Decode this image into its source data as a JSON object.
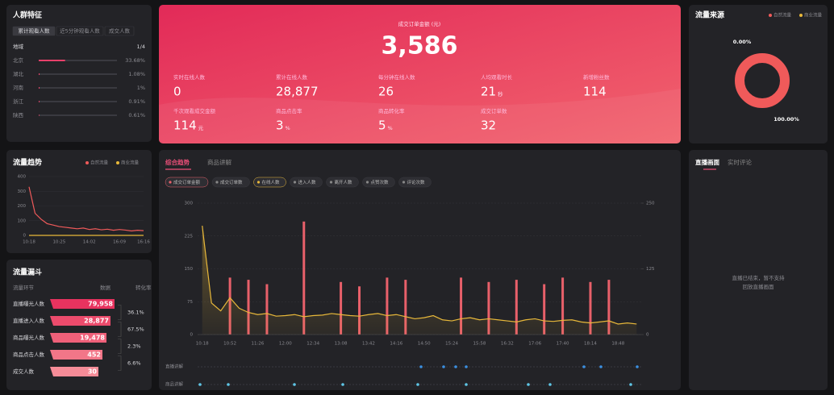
{
  "audience": {
    "title": "人群特征",
    "tabs": [
      "累计观看人数",
      "近5分钟观看人数",
      "成交人数"
    ],
    "dimension": "地域",
    "page": "1/4",
    "regions": {
      "names": [
        "北京",
        "湖北",
        "河南",
        "浙江",
        "陕西"
      ],
      "values": [
        33.68,
        1.08,
        1,
        0.91,
        0.61
      ],
      "value_labels": [
        "33.68%",
        "1.08%",
        "1%",
        "0.91%",
        "0.61%"
      ]
    }
  },
  "overview": {
    "headline": {
      "label": "成交订单金额 (元)",
      "value": "3,586"
    },
    "metrics": [
      {
        "label": "实时在线人数",
        "value": "0"
      },
      {
        "label": "累计在线人数",
        "value": "28,877"
      },
      {
        "label": "每分钟在线人数",
        "value": "26"
      },
      {
        "label": "人均观看时长",
        "value": "21",
        "unit": "秒"
      },
      {
        "label": "新增粉丝数",
        "value": "114"
      },
      {
        "label": "千次观看成交金额",
        "value": "114",
        "unit": "元"
      },
      {
        "label": "商品点击率",
        "value": "3",
        "unit": "%"
      },
      {
        "label": "商品转化率",
        "value": "5",
        "unit": "%"
      },
      {
        "label": "成交订单数",
        "value": "32"
      }
    ]
  },
  "chart_data": [
    {
      "type": "pie",
      "title": "流量来源",
      "categories": [
        "自然流量",
        "商业流量"
      ],
      "colors": [
        "#f05a5a",
        "#e8b83a"
      ],
      "values": [
        100,
        0
      ],
      "value_labels": [
        "100.00%",
        "0.00%"
      ]
    },
    {
      "type": "line",
      "title": "流量趋势",
      "categories": [
        "10:18",
        null,
        null,
        null,
        null,
        "10:25",
        null,
        null,
        null,
        null,
        "14:02",
        null,
        null,
        null,
        null,
        "16:09",
        null,
        null,
        null,
        "16:16"
      ],
      "series": [
        {
          "name": "自然流量",
          "color": "#f05a5a",
          "values": [
            330,
            150,
            110,
            80,
            70,
            60,
            55,
            50,
            45,
            50,
            40,
            45,
            38,
            42,
            35,
            40,
            36,
            30,
            35,
            32
          ]
        },
        {
          "name": "商业流量",
          "color": "#e8b83a",
          "values": [
            0,
            0,
            0,
            0,
            0,
            0,
            0,
            0,
            0,
            0,
            0,
            0,
            0,
            0,
            0,
            0,
            0,
            0,
            0,
            0
          ]
        }
      ],
      "ylim": [
        0,
        400
      ],
      "yticks": [
        0,
        100,
        200,
        300,
        400
      ]
    },
    {
      "type": "combo",
      "categories": [
        "10:18",
        null,
        null,
        "10:52",
        null,
        null,
        "11:26",
        null,
        null,
        "12:00",
        null,
        null,
        "12:34",
        null,
        null,
        "13:08",
        null,
        null,
        "13:42",
        null,
        null,
        "14:16",
        null,
        null,
        "14:50",
        null,
        null,
        "15:24",
        null,
        null,
        "15:58",
        null,
        null,
        "16:32",
        null,
        null,
        "17:06",
        null,
        null,
        "17:40",
        null,
        null,
        "18:14",
        null,
        null,
        "18:48",
        null,
        null
      ],
      "series": [
        {
          "name": "成交订单金额",
          "type": "bar",
          "color": "#e8606a",
          "values": [
            0,
            0,
            0,
            130,
            0,
            125,
            0,
            115,
            0,
            0,
            0,
            258,
            0,
            0,
            0,
            120,
            0,
            110,
            0,
            0,
            130,
            0,
            125,
            0,
            0,
            0,
            0,
            0,
            130,
            0,
            0,
            120,
            0,
            0,
            125,
            0,
            0,
            115,
            0,
            130,
            0,
            0,
            120,
            0,
            125,
            0,
            0,
            0
          ]
        },
        {
          "name": "在线人数",
          "type": "line",
          "axis": "y2",
          "color": "#e8b83a",
          "values": [
            207,
            60,
            45,
            70,
            50,
            42,
            38,
            40,
            35,
            36,
            38,
            34,
            36,
            37,
            40,
            38,
            36,
            35,
            38,
            40,
            36,
            38,
            34,
            30,
            32,
            36,
            28,
            26,
            30,
            32,
            28,
            30,
            28,
            26,
            24,
            28,
            30,
            26,
            25,
            27,
            28,
            24,
            22,
            24,
            26,
            20,
            22,
            20
          ]
        }
      ],
      "ylim": [
        0,
        300
      ],
      "yticks": [
        0,
        75,
        150,
        225,
        300
      ],
      "y2lim": [
        0,
        250
      ],
      "y2ticks": [
        0,
        125,
        250
      ],
      "grid": true
    }
  ],
  "funnel": {
    "title": "流量漏斗",
    "columns": [
      "流量环节",
      "数据",
      "转化率"
    ],
    "stages": [
      "直播曝光人数",
      "直播进入人数",
      "商品曝光人数",
      "商品点击人数",
      "成交人数"
    ],
    "values": [
      79958,
      28877,
      19478,
      452,
      30
    ],
    "value_labels": [
      "79,958",
      "28,877",
      "19,478",
      "452",
      "30"
    ],
    "rates": [
      "36.1%",
      "67.5%",
      "2.3%",
      "6.6%"
    ]
  },
  "main_panel": {
    "tabs": [
      "综合趋势",
      "商品讲解"
    ],
    "filters": [
      "成交订单数",
      "进入人数",
      "离开人数",
      "点赞次数",
      "评论次数"
    ],
    "timeline": [
      "直播讲解",
      "商品讲解"
    ]
  },
  "live_panel": {
    "tabs": [
      "直播画面",
      "实时评论"
    ],
    "message": [
      "直播已结束，暂不支持",
      "回放直播画面"
    ]
  }
}
